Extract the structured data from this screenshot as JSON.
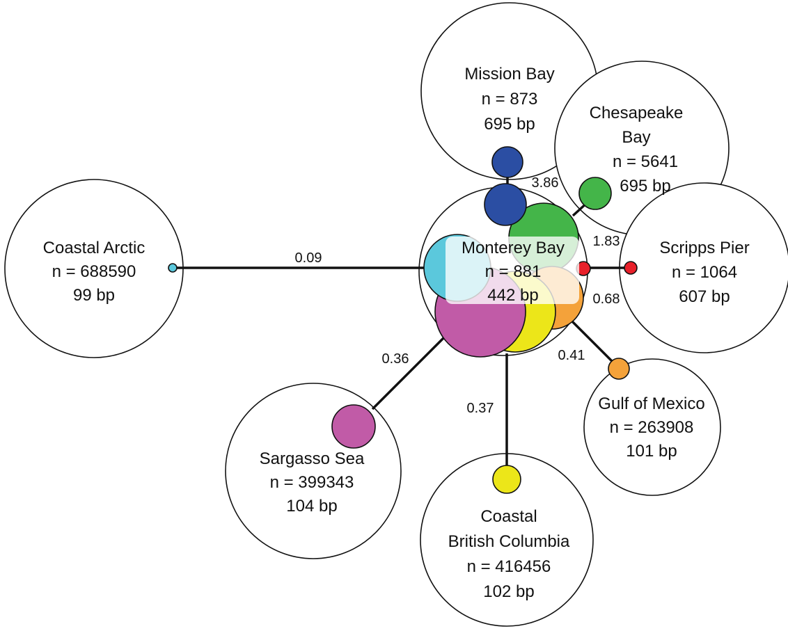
{
  "colors": {
    "coastal_arctic": "#5bc8dc",
    "mission_bay": "#2b4ea3",
    "chesapeake_bay": "#44b549",
    "scripps_pier": "#e8202a",
    "gulf_of_mexico": "#f4a23a",
    "sargasso_sea": "#c15ba7",
    "coastal_british_columbia": "#ece619"
  },
  "center": {
    "name": "Monterey Bay",
    "n": "n = 881",
    "bp": "442 bp"
  },
  "sites": {
    "mission_bay": {
      "name": "Mission Bay",
      "n": "n = 873",
      "bp": "695 bp",
      "distance": "3.86"
    },
    "chesapeake_bay": {
      "name_line1": "Chesapeake",
      "name_line2": "Bay",
      "n": "n = 5641",
      "bp": "695 bp",
      "distance": "1.83"
    },
    "scripps_pier": {
      "name": "Scripps Pier",
      "n": "n = 1064",
      "bp": "607 bp",
      "distance": "0.68"
    },
    "gulf_of_mexico": {
      "name": "Gulf of Mexico",
      "n": "n = 263908",
      "bp": "101 bp",
      "distance": "0.41"
    },
    "coastal_british_columbia": {
      "name_line1": "Coastal",
      "name_line2": "British Columbia",
      "n": "n = 416456",
      "bp": "102 bp",
      "distance": "0.37"
    },
    "sargasso_sea": {
      "name": "Sargasso Sea",
      "n": "n = 399343",
      "bp": "104 bp",
      "distance": "0.36"
    },
    "coastal_arctic": {
      "name": "Coastal Arctic",
      "n": "n = 688590",
      "bp": "99 bp",
      "distance": "0.09"
    }
  }
}
